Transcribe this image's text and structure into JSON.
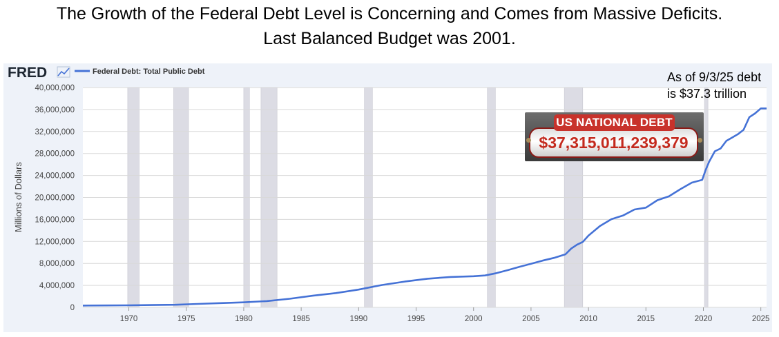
{
  "headline": {
    "line1": "The Growth of the Federal Debt Level is Concerning and Comes from Massive Deficits.",
    "line2": "Last Balanced Budget was 2001."
  },
  "branding": {
    "fred_logo": "FRED",
    "logo_icon": "line-chart-icon"
  },
  "annotation": {
    "line1": "As of 9/3/25 debt",
    "line2": "is $37.3 trillion"
  },
  "debt_clock": {
    "title": "US NATIONAL DEBT",
    "value": "$37,315,011,239,379"
  },
  "colors": {
    "line": "#4572d6",
    "recession": "#dcdce4",
    "plot_bg": "#ffffff",
    "frame_bg": "#eef2f9"
  },
  "chart_data": {
    "type": "line",
    "title": "",
    "ylabel": "Millions of Dollars",
    "xlim": [
      1966,
      2025.5
    ],
    "ylim": [
      0,
      40000000
    ],
    "yticks": [
      0,
      4000000,
      8000000,
      12000000,
      16000000,
      20000000,
      24000000,
      28000000,
      32000000,
      36000000,
      40000000
    ],
    "ytick_labels": [
      "0",
      "4,000,000",
      "8,000,000",
      "12,000,000",
      "16,000,000",
      "20,000,000",
      "24,000,000",
      "28,000,000",
      "32,000,000",
      "36,000,000",
      "40,000,000"
    ],
    "xticks": [
      1970,
      1975,
      1980,
      1985,
      1990,
      1995,
      2000,
      2005,
      2010,
      2015,
      2020,
      2025
    ],
    "legend_position": "top-left",
    "grid": true,
    "recessions": [
      [
        1969.9,
        1970.9
      ],
      [
        1973.9,
        1975.2
      ],
      [
        1980.0,
        1980.5
      ],
      [
        1981.5,
        1982.9
      ],
      [
        1990.5,
        1991.2
      ],
      [
        2001.2,
        2001.9
      ],
      [
        2007.9,
        2009.5
      ],
      [
        2020.1,
        2020.4
      ]
    ],
    "series": [
      {
        "name": "Federal Debt: Total Public Debt",
        "x": [
          1966,
          1968,
          1970,
          1972,
          1974,
          1976,
          1978,
          1980,
          1982,
          1984,
          1986,
          1988,
          1990,
          1992,
          1994,
          1996,
          1998,
          2000,
          2001,
          2002,
          2003,
          2004,
          2005,
          2006,
          2007,
          2008,
          2008.5,
          2009,
          2009.5,
          2010,
          2011,
          2012,
          2013,
          2014,
          2015,
          2016,
          2017,
          2018,
          2019,
          2019.9,
          2020.2,
          2020.5,
          2021,
          2021.5,
          2022,
          2022.5,
          2023,
          2023.5,
          2024,
          2024.5,
          2025,
          2025.5
        ],
        "values": [
          320000,
          350000,
          380000,
          430000,
          480000,
          630000,
          780000,
          910000,
          1140000,
          1570000,
          2120000,
          2600000,
          3230000,
          4060000,
          4690000,
          5220000,
          5530000,
          5670000,
          5800000,
          6230000,
          6780000,
          7380000,
          7930000,
          8500000,
          9000000,
          9650000,
          10700000,
          11400000,
          11900000,
          13050000,
          14800000,
          16050000,
          16700000,
          17800000,
          18150000,
          19500000,
          20200000,
          21500000,
          22700000,
          23200000,
          25000000,
          26500000,
          28400000,
          28900000,
          30300000,
          30900000,
          31500000,
          32300000,
          34600000,
          35300000,
          36200000,
          36200000
        ]
      }
    ]
  }
}
